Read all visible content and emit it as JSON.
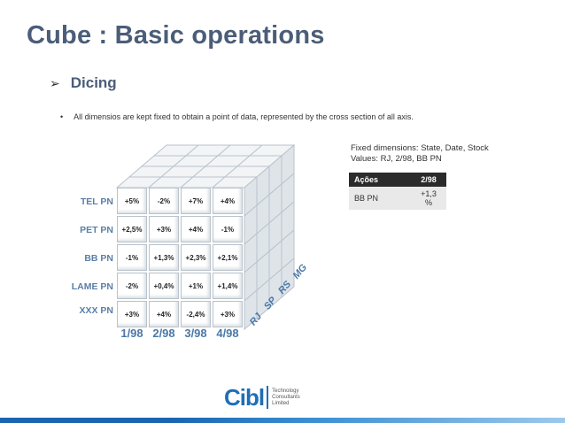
{
  "title": "Cube : Basic operations",
  "bullet": {
    "marker": "➢",
    "text": "Dicing"
  },
  "sub_bullet": {
    "marker": "•",
    "text": "All dimensios are kept fixed to obtain a point of data, represented by the cross section of all axis."
  },
  "cube": {
    "rows": [
      {
        "label": "TEL PN",
        "values": [
          "+5%",
          "-2%",
          "+7%",
          "+4%"
        ]
      },
      {
        "label": "PET PN",
        "values": [
          "+2,5%",
          "+3%",
          "+4%",
          "-1%"
        ]
      },
      {
        "label": "BB PN",
        "values": [
          "-1%",
          "+1,3%",
          "+2,3%",
          "+2,1%"
        ]
      },
      {
        "label": "LAME PN",
        "values": [
          "-2%",
          "+0,4%",
          "+1%",
          "+1,4%"
        ]
      },
      {
        "label": "XXX PN",
        "values": [
          "+3%",
          "+4%",
          "-2,4%",
          "+3%"
        ]
      }
    ],
    "columns": [
      "1/98",
      "2/98",
      "3/98",
      "4/98"
    ],
    "depth": [
      "RJ",
      "SP",
      "RS",
      "MG"
    ]
  },
  "fixed_dimensions": {
    "line1": "Fixed dimensions: State, Date, Stock",
    "line2": "Values: RJ, 2/98, BB PN"
  },
  "mini_table": {
    "headers": [
      "Ações",
      "2/98"
    ],
    "row": [
      "BB PN",
      "+1,3 %"
    ]
  },
  "logo": {
    "word": "Cibl",
    "sub1": "Technology",
    "sub2": "Consultants",
    "sub3": "Limited"
  }
}
